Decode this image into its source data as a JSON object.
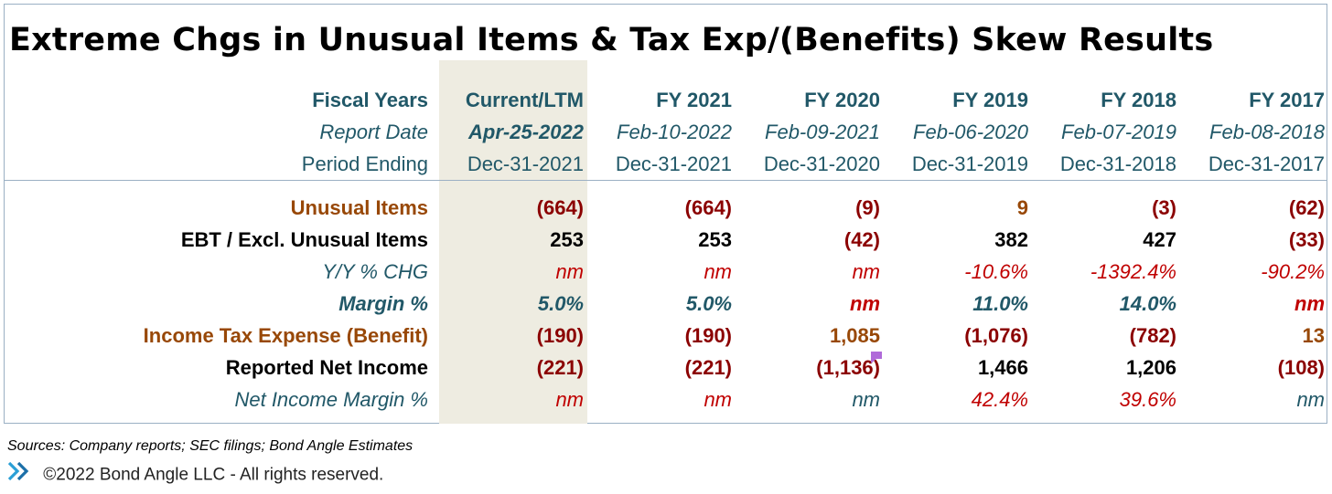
{
  "title": "Extreme Chgs in Unusual Items & Tax Exp/(Benefits) Skew Results",
  "header": {
    "fiscal_years": {
      "label": "Fiscal Years",
      "values": [
        "Current/LTM",
        "FY 2021",
        "FY 2020",
        "FY 2019",
        "FY 2018",
        "FY 2017"
      ]
    },
    "report_date": {
      "label": "Report Date",
      "values": [
        "Apr-25-2022",
        "Feb-10-2022",
        "Feb-09-2021",
        "Feb-06-2020",
        "Feb-07-2019",
        "Feb-08-2018"
      ]
    },
    "period_ending": {
      "label": "Period Ending",
      "values": [
        "Dec-31-2021",
        "Dec-31-2021",
        "Dec-31-2020",
        "Dec-31-2019",
        "Dec-31-2018",
        "Dec-31-2017"
      ]
    }
  },
  "rows": [
    {
      "label": "Unusual Items",
      "values": [
        "(664)",
        "(664)",
        "(9)",
        "9",
        "(3)",
        "(62)"
      ]
    },
    {
      "label": "EBT / Excl. Unusual Items",
      "values": [
        "253",
        "253",
        "(42)",
        "382",
        "427",
        "(33)"
      ]
    },
    {
      "label": "Y/Y % CHG",
      "values": [
        "nm",
        "nm",
        "nm",
        "-10.6%",
        "-1392.4%",
        "-90.2%"
      ]
    },
    {
      "label": "Margin %",
      "values": [
        "5.0%",
        "5.0%",
        "nm",
        "11.0%",
        "14.0%",
        "nm"
      ]
    },
    {
      "label": "Income Tax Expense (Benefit)",
      "values": [
        "(190)",
        "(190)",
        "1,085",
        "(1,076)",
        "(782)",
        "13"
      ]
    },
    {
      "label": "Reported Net Income",
      "values": [
        "(221)",
        "(221)",
        "(1,136)",
        "1,466",
        "1,206",
        "(108)"
      ]
    },
    {
      "label": "Net Income Margin %",
      "values": [
        "nm",
        "nm",
        "nm",
        "42.4%",
        "39.6%",
        "nm"
      ]
    }
  ],
  "footer": {
    "sources": "Sources: Company reports; SEC filings; Bond Angle Estimates",
    "copyright": "©2022 Bond Angle LLC - All rights reserved.",
    "logo_icon": "bond-angle-chevron-icon"
  },
  "colors": {
    "teal": "#215868",
    "brown": "#984807",
    "red": "#c00000",
    "dark_red": "#8b0000",
    "ltm_shade": "#eeece1",
    "border": "#9bb0c4"
  }
}
